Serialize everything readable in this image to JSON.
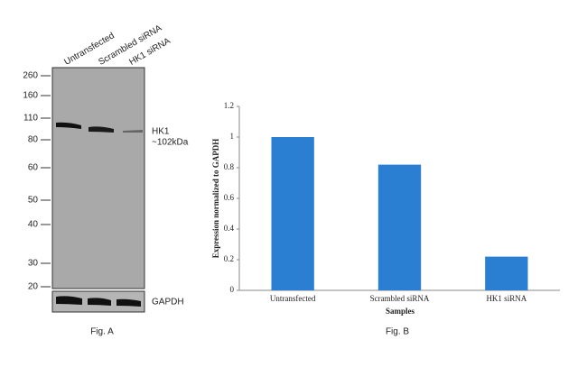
{
  "blot": {
    "lanes": [
      "Untransfected",
      "Scrambled siRNA",
      "HK1 siRNA"
    ],
    "markers": [
      260,
      160,
      110,
      80,
      60,
      50,
      40,
      30,
      20
    ],
    "band_label": "HK1",
    "band_size": "~102kDa",
    "loading_control": "GAPDH",
    "caption": "Fig. A"
  },
  "chart_data": {
    "type": "bar",
    "caption": "Fig. B",
    "x_label": "Samples",
    "y_label": "Expression normalized to GAPDH",
    "categories": [
      "Untransfected",
      "Scrambled siRNA",
      "HK1 siRNA"
    ],
    "values": [
      1,
      0.82,
      0.22
    ],
    "color": "#2b7fd3",
    "ylim": [
      0,
      1.2
    ],
    "yticks": [
      0,
      0.2,
      0.4,
      0.6,
      0.8,
      1,
      1.2
    ]
  }
}
